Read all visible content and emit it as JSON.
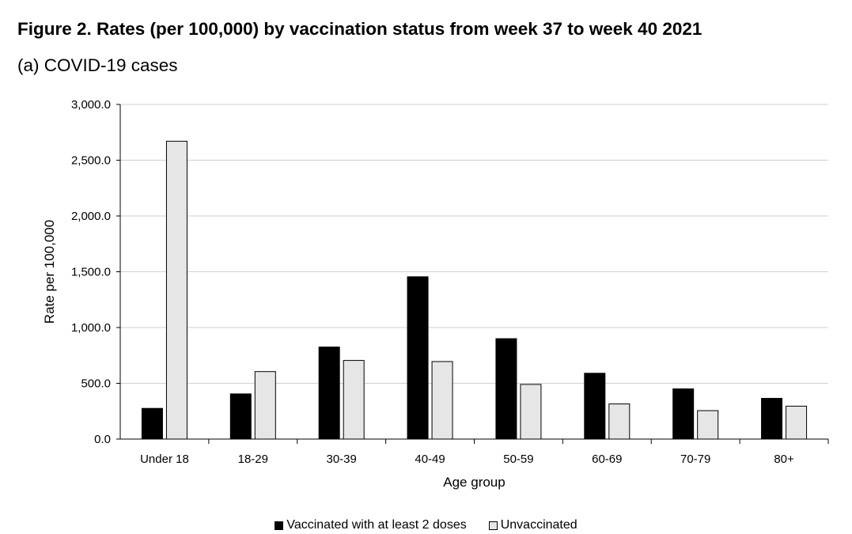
{
  "chart_data": {
    "type": "bar",
    "title": "Figure 2. Rates (per 100,000) by vaccination status from week 37 to week 40 2021",
    "subtitle": "(a) COVID-19 cases",
    "xlabel": "Age group",
    "ylabel": "Rate per 100,000",
    "ylim": [
      0,
      3000
    ],
    "yticks": [
      0,
      500,
      1000,
      1500,
      2000,
      2500,
      3000
    ],
    "ytick_labels": [
      "0.0",
      "500.0",
      "1,000.0",
      "1,500.0",
      "2,000.0",
      "2,500.0",
      "3,000.0"
    ],
    "categories": [
      "Under 18",
      "18-29",
      "30-39",
      "40-49",
      "50-59",
      "60-69",
      "70-79",
      "80+"
    ],
    "series": [
      {
        "name": "Vaccinated with at least 2 doses",
        "color": "#000000",
        "values": [
          275,
          405,
          825,
          1455,
          900,
          590,
          450,
          365
        ]
      },
      {
        "name": "Unvaccinated",
        "color": "#e6e6e6",
        "values": [
          2670,
          605,
          705,
          695,
          490,
          315,
          255,
          295
        ]
      }
    ],
    "grid": true,
    "legend_position": "bottom"
  }
}
